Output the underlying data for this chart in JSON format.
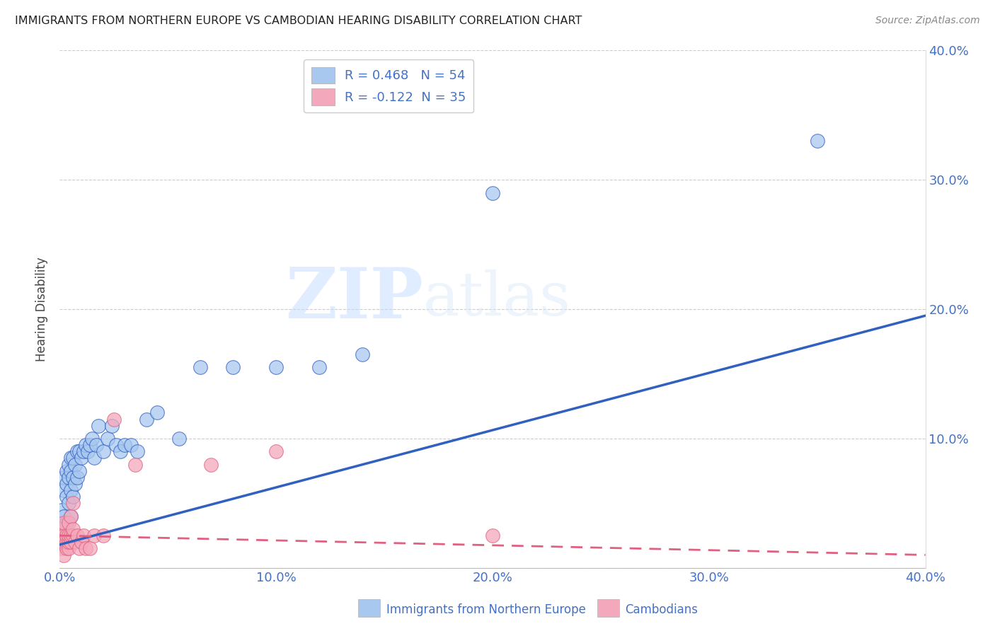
{
  "title": "IMMIGRANTS FROM NORTHERN EUROPE VS CAMBODIAN HEARING DISABILITY CORRELATION CHART",
  "source": "Source: ZipAtlas.com",
  "ylabel": "Hearing Disability",
  "xlim": [
    0.0,
    0.4
  ],
  "ylim": [
    0.0,
    0.4
  ],
  "blue_R": 0.468,
  "blue_N": 54,
  "pink_R": -0.122,
  "pink_N": 35,
  "blue_color": "#A8C8F0",
  "pink_color": "#F4A8BC",
  "blue_line_color": "#3060C0",
  "pink_line_color": "#E06080",
  "watermark_zip": "ZIP",
  "watermark_atlas": "atlas",
  "legend_label_blue": "Immigrants from Northern Europe",
  "legend_label_pink": "Cambodians",
  "blue_line_x0": 0.0,
  "blue_line_y0": 0.018,
  "blue_line_x1": 0.4,
  "blue_line_y1": 0.195,
  "pink_line_x0": 0.0,
  "pink_line_y0": 0.025,
  "pink_line_x1": 0.4,
  "pink_line_y1": 0.01,
  "blue_x": [
    0.001,
    0.001,
    0.001,
    0.002,
    0.002,
    0.002,
    0.002,
    0.003,
    0.003,
    0.003,
    0.003,
    0.004,
    0.004,
    0.004,
    0.005,
    0.005,
    0.005,
    0.005,
    0.006,
    0.006,
    0.006,
    0.007,
    0.007,
    0.008,
    0.008,
    0.009,
    0.009,
    0.01,
    0.011,
    0.012,
    0.013,
    0.014,
    0.015,
    0.016,
    0.017,
    0.018,
    0.02,
    0.022,
    0.024,
    0.026,
    0.028,
    0.03,
    0.033,
    0.036,
    0.04,
    0.045,
    0.055,
    0.065,
    0.08,
    0.1,
    0.12,
    0.14,
    0.2,
    0.35
  ],
  "blue_y": [
    0.02,
    0.03,
    0.045,
    0.025,
    0.04,
    0.06,
    0.07,
    0.035,
    0.055,
    0.065,
    0.075,
    0.05,
    0.07,
    0.08,
    0.04,
    0.06,
    0.075,
    0.085,
    0.055,
    0.07,
    0.085,
    0.065,
    0.08,
    0.07,
    0.09,
    0.075,
    0.09,
    0.085,
    0.09,
    0.095,
    0.09,
    0.095,
    0.1,
    0.085,
    0.095,
    0.11,
    0.09,
    0.1,
    0.11,
    0.095,
    0.09,
    0.095,
    0.095,
    0.09,
    0.115,
    0.12,
    0.1,
    0.155,
    0.155,
    0.155,
    0.155,
    0.165,
    0.29,
    0.33
  ],
  "pink_x": [
    0.001,
    0.001,
    0.001,
    0.001,
    0.002,
    0.002,
    0.002,
    0.002,
    0.003,
    0.003,
    0.003,
    0.004,
    0.004,
    0.004,
    0.004,
    0.005,
    0.005,
    0.005,
    0.006,
    0.006,
    0.006,
    0.007,
    0.008,
    0.009,
    0.01,
    0.011,
    0.012,
    0.014,
    0.016,
    0.02,
    0.025,
    0.035,
    0.07,
    0.1,
    0.2
  ],
  "pink_y": [
    0.015,
    0.02,
    0.025,
    0.03,
    0.01,
    0.02,
    0.025,
    0.035,
    0.015,
    0.02,
    0.025,
    0.015,
    0.02,
    0.025,
    0.035,
    0.02,
    0.025,
    0.04,
    0.025,
    0.03,
    0.05,
    0.02,
    0.025,
    0.015,
    0.02,
    0.025,
    0.015,
    0.015,
    0.025,
    0.025,
    0.115,
    0.08,
    0.08,
    0.09,
    0.025
  ]
}
